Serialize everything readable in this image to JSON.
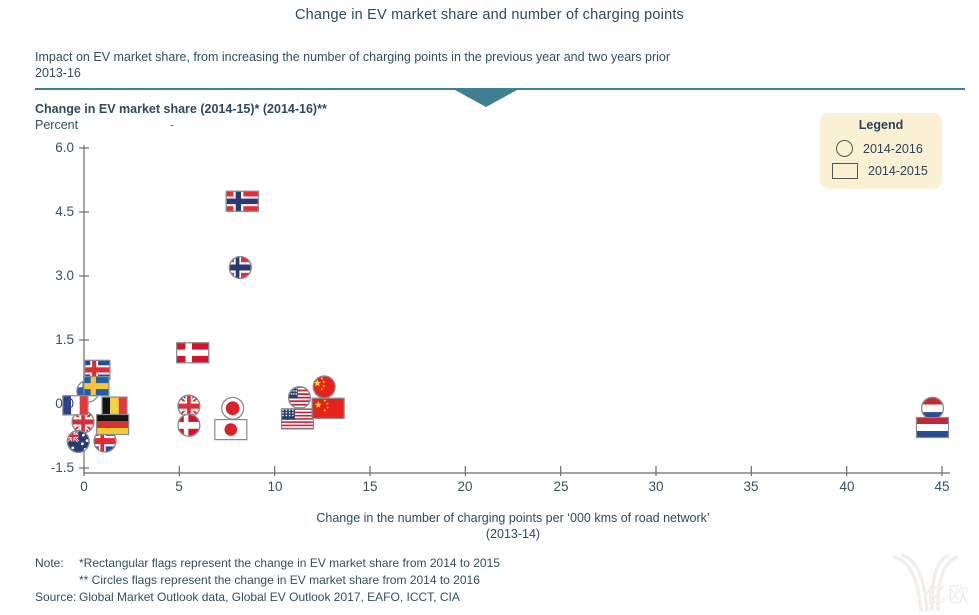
{
  "page": {
    "title": "Change in EV market share and number of charging points",
    "subtitle_line1": "Impact on EV market share, from increasing the number of charging points in the previous year and two years prior",
    "subtitle_line2": "2013-16",
    "section_heading": "Change in EV market share (2014-15)* (2014-16)**",
    "y_unit": "Percent",
    "stray_dash": "-"
  },
  "legend": {
    "title": "Legend",
    "items": [
      {
        "marker": "circle",
        "label": "2014-2016"
      },
      {
        "marker": "rect",
        "label": "2014-2015"
      }
    ]
  },
  "notes": {
    "note_label": "Note:",
    "note_line1": "*Rectangular flags represent the change in EV market share from 2014 to 2015",
    "note_line2": "** Circles flags represent the change in EV market share from 2014 to 2016",
    "source_label": "Source:",
    "source_text": "Global Market Outlook data, Global EV Outlook 2017, EAFO, ICCT, CIA"
  },
  "watermark": {
    "text": "亿欧"
  },
  "colors": {
    "accent_teal": "#3E7F91",
    "heading_navy": "#2C4A5E",
    "legend_bg": "#FAF0D4",
    "axis_gray": "#6B6B6B",
    "marker_outline": "#8A8A8A"
  },
  "chart_data": {
    "type": "scatter",
    "title": "Change in EV market share and number of charging points",
    "ylabel": "Change in EV market share (2014-15)* (2014-16)**",
    "y_unit": "Percent",
    "xlabel": "Change in the number of charging points per ‘000 kms of road network’",
    "xlabel_sub": "(2013-14)",
    "xlim": [
      0,
      45
    ],
    "ylim": [
      -1.5,
      6.0
    ],
    "x_ticks": [
      "0",
      "5",
      "10",
      "15",
      "20",
      "25",
      "30",
      "35",
      "40",
      "45"
    ],
    "y_ticks": [
      "-1.5",
      "0.0",
      "1.5",
      "3.0",
      "4.5",
      "6.0"
    ],
    "grid": false,
    "legend_position": "top-right",
    "marker_meaning": {
      "circle": "2014-2016",
      "rect": "2014-2015"
    },
    "points": [
      {
        "country": "Finland",
        "flag": "finland",
        "marker": "circle",
        "x": 0.2,
        "y": 0.3
      },
      {
        "country": "Iceland",
        "flag": "iceland",
        "marker": "square",
        "x": 0.7,
        "y": 0.8
      },
      {
        "country": "Sweden",
        "flag": "sweden",
        "marker": "square",
        "x": 0.65,
        "y": 0.42
      },
      {
        "country": "United Kingdom",
        "flag": "uk",
        "marker": "circle",
        "x": -0.05,
        "y": -0.42
      },
      {
        "country": "Iceland",
        "flag": "iceland",
        "marker": "circle",
        "x": 1.1,
        "y": -0.87
      },
      {
        "country": "France",
        "flag": "france",
        "marker": "square",
        "x": -0.45,
        "y": -0.03
      },
      {
        "country": "Belgium",
        "flag": "belgium",
        "marker": "square",
        "x": 1.6,
        "y": -0.06
      },
      {
        "country": "Germany",
        "flag": "germany",
        "marker": "rect",
        "x": 1.5,
        "y": -0.48
      },
      {
        "country": "Australia",
        "flag": "australia",
        "marker": "circle",
        "x": -0.3,
        "y": -0.88
      },
      {
        "country": "Denmark",
        "flag": "denmark",
        "marker": "rect",
        "x": 5.7,
        "y": 1.2
      },
      {
        "country": "United Kingdom",
        "flag": "uk",
        "marker": "circle",
        "x": 5.5,
        "y": -0.05
      },
      {
        "country": "Denmark",
        "flag": "denmark",
        "marker": "circle",
        "x": 5.5,
        "y": -0.5
      },
      {
        "country": "Japan",
        "flag": "japan",
        "marker": "circle",
        "x": 7.8,
        "y": -0.1
      },
      {
        "country": "Japan",
        "flag": "japan",
        "marker": "rect",
        "x": 7.7,
        "y": -0.6
      },
      {
        "country": "Norway",
        "flag": "norway",
        "marker": "rect",
        "x": 8.3,
        "y": 4.75
      },
      {
        "country": "Norway",
        "flag": "norway",
        "marker": "circle",
        "x": 8.2,
        "y": 3.2
      },
      {
        "country": "United States",
        "flag": "usa",
        "marker": "circle",
        "x": 11.3,
        "y": 0.15
      },
      {
        "country": "China",
        "flag": "china",
        "marker": "circle",
        "x": 12.6,
        "y": 0.4
      },
      {
        "country": "United States",
        "flag": "usa",
        "marker": "rect",
        "x": 11.2,
        "y": -0.35
      },
      {
        "country": "China",
        "flag": "china",
        "marker": "rect",
        "x": 12.8,
        "y": -0.1
      },
      {
        "country": "Netherlands",
        "flag": "netherlands",
        "marker": "circle",
        "x": 44.5,
        "y": -0.1
      },
      {
        "country": "Netherlands",
        "flag": "netherlands",
        "marker": "rect",
        "x": 44.5,
        "y": -0.55
      }
    ]
  }
}
